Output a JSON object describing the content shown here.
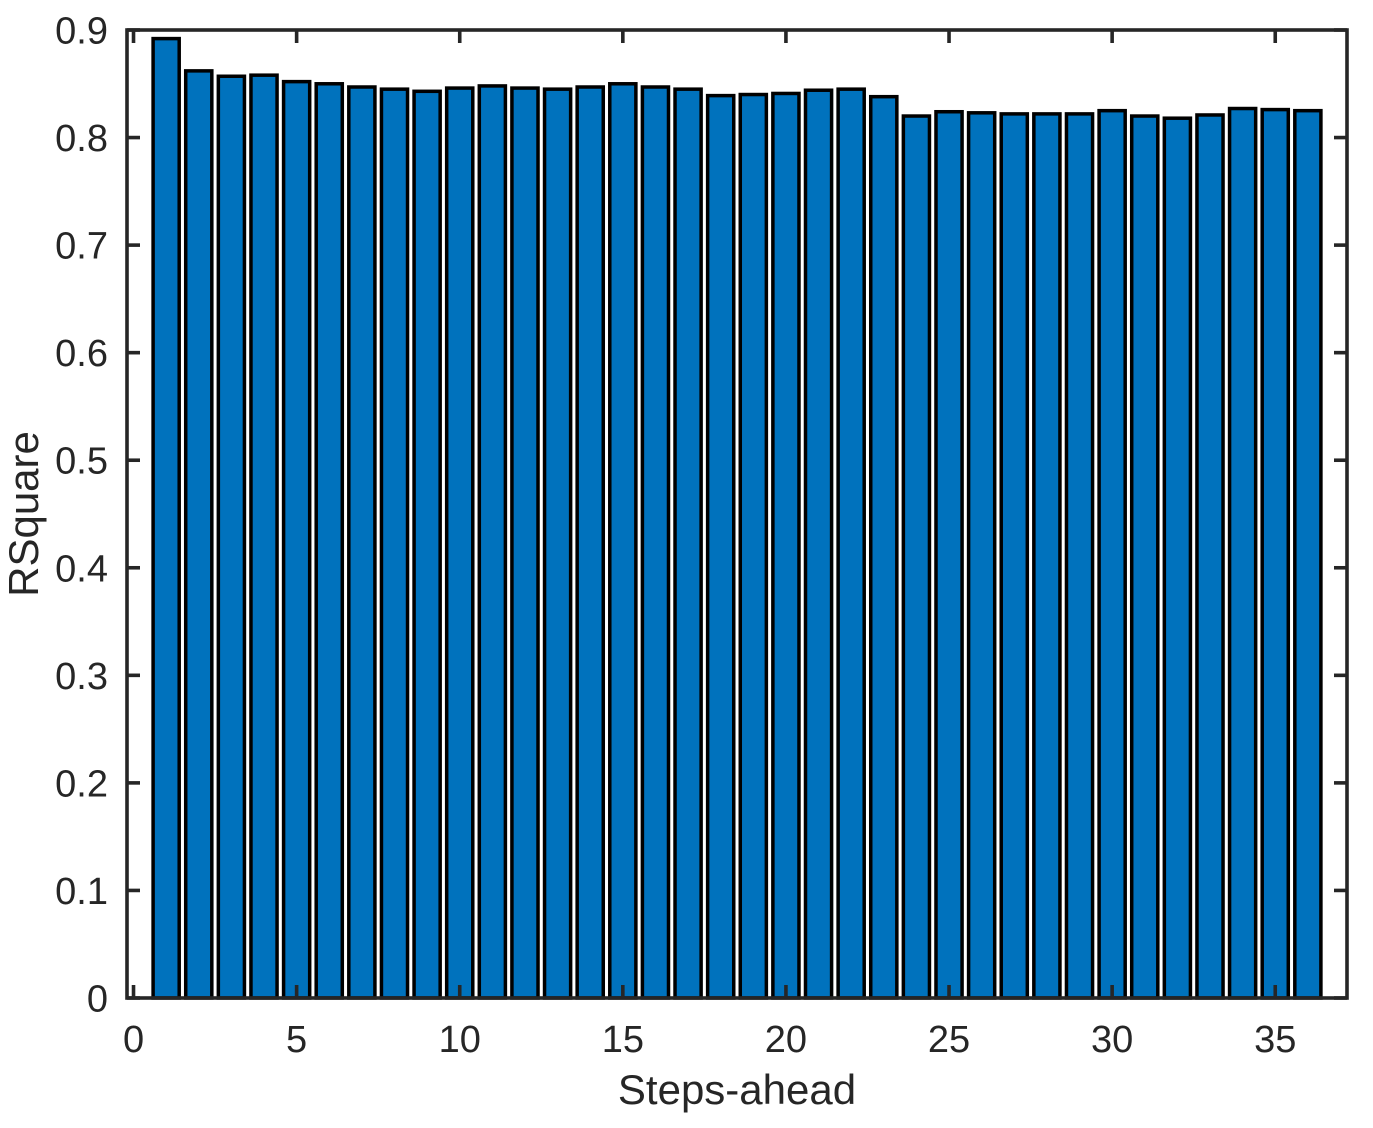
{
  "figure": {
    "background": "#ffffff"
  },
  "chart_data": {
    "type": "bar",
    "title": "",
    "xlabel": "Steps-ahead",
    "ylabel": "RSquare",
    "x": [
      1,
      2,
      3,
      4,
      5,
      6,
      7,
      8,
      9,
      10,
      11,
      12,
      13,
      14,
      15,
      16,
      17,
      18,
      19,
      20,
      21,
      22,
      23,
      24,
      25,
      26,
      27,
      28,
      29,
      30,
      31,
      32,
      33,
      34,
      35,
      36
    ],
    "values": [
      0.892,
      0.862,
      0.857,
      0.858,
      0.852,
      0.85,
      0.847,
      0.845,
      0.843,
      0.846,
      0.848,
      0.846,
      0.845,
      0.847,
      0.85,
      0.847,
      0.845,
      0.839,
      0.84,
      0.841,
      0.844,
      0.845,
      0.838,
      0.82,
      0.824,
      0.823,
      0.822,
      0.822,
      0.822,
      0.825,
      0.82,
      0.818,
      0.821,
      0.827,
      0.826,
      0.825
    ],
    "xlim": [
      -0.2,
      37.2
    ],
    "ylim": [
      0,
      0.9
    ],
    "xticks": [
      0,
      5,
      10,
      15,
      20,
      25,
      30,
      35
    ],
    "xtick_labels": [
      "0",
      "5",
      "10",
      "15",
      "20",
      "25",
      "30",
      "35"
    ],
    "yticks": [
      0,
      0.1,
      0.2,
      0.3,
      0.4,
      0.5,
      0.6,
      0.7,
      0.8,
      0.9
    ],
    "ytick_labels": [
      "0",
      "0.1",
      "0.2",
      "0.3",
      "0.4",
      "0.5",
      "0.6",
      "0.7",
      "0.8",
      "0.9"
    ],
    "bar_width": 0.8,
    "bar_color": "#0072BD",
    "bar_edge_color": "#000000",
    "axis_color": "#262626",
    "grid": false,
    "legend": "none",
    "box": true,
    "tick_direction": "in"
  }
}
